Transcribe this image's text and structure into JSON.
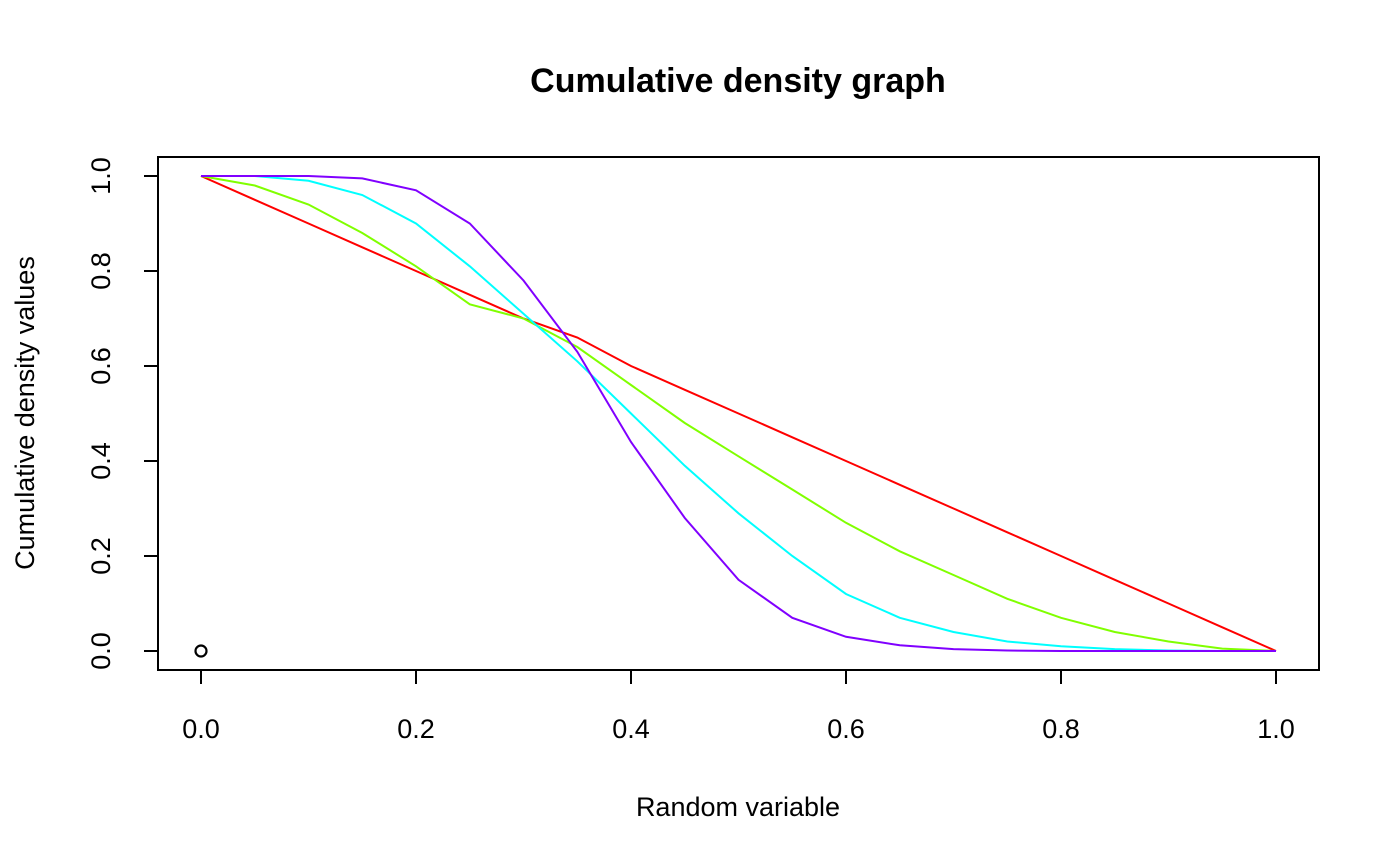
{
  "chart_data": {
    "type": "line",
    "title": "Cumulative density graph",
    "xlabel": "Random variable",
    "ylabel": "Cumulative density values",
    "xlim": [
      0,
      1
    ],
    "ylim": [
      0,
      1
    ],
    "grid": false,
    "x_ticks": [
      "0.0",
      "0.2",
      "0.4",
      "0.6",
      "0.8",
      "1.0"
    ],
    "y_ticks": [
      "0.0",
      "0.2",
      "0.4",
      "0.6",
      "0.8",
      "1.0"
    ],
    "points": [
      {
        "x": 0,
        "y": 0
      }
    ],
    "x": [
      0,
      0.05,
      0.1,
      0.15,
      0.2,
      0.25,
      0.3,
      0.35,
      0.4,
      0.45,
      0.5,
      0.55,
      0.6,
      0.65,
      0.7,
      0.75,
      0.8,
      0.85,
      0.9,
      0.95,
      1.0
    ],
    "series": [
      {
        "color": "#FF0000",
        "values": [
          1.0,
          0.95,
          0.9,
          0.85,
          0.8,
          0.75,
          0.7,
          0.66,
          0.6,
          0.55,
          0.5,
          0.45,
          0.4,
          0.35,
          0.3,
          0.25,
          0.2,
          0.15,
          0.1,
          0.05,
          0.0
        ]
      },
      {
        "color": "#80FF00",
        "values": [
          1.0,
          0.98,
          0.94,
          0.88,
          0.81,
          0.73,
          0.7,
          0.64,
          0.56,
          0.48,
          0.41,
          0.34,
          0.27,
          0.21,
          0.16,
          0.11,
          0.07,
          0.04,
          0.02,
          0.005,
          0.0
        ]
      },
      {
        "color": "#00FFFF",
        "values": [
          1.0,
          1.0,
          0.99,
          0.96,
          0.9,
          0.81,
          0.71,
          0.61,
          0.5,
          0.39,
          0.29,
          0.2,
          0.12,
          0.07,
          0.04,
          0.02,
          0.01,
          0.004,
          0.001,
          0.0,
          0.0
        ]
      },
      {
        "color": "#8000FF",
        "values": [
          1.0,
          1.0,
          1.0,
          0.995,
          0.97,
          0.9,
          0.78,
          0.63,
          0.44,
          0.28,
          0.15,
          0.07,
          0.03,
          0.012,
          0.004,
          0.001,
          0.0,
          0.0,
          0.0,
          0.0,
          0.0
        ]
      }
    ]
  }
}
